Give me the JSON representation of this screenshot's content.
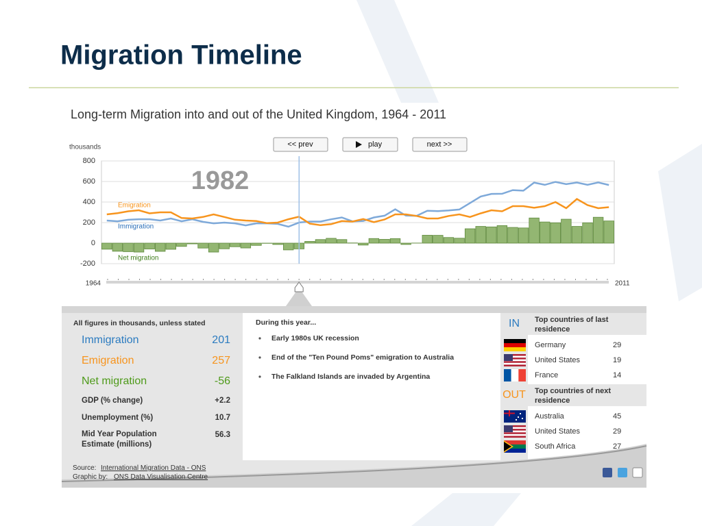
{
  "slide": {
    "title": "Migration Timeline"
  },
  "controls": {
    "prev": "<< prev",
    "play": "play",
    "next": "next >>"
  },
  "chart_data": {
    "type": "line",
    "title": "Long-term Migration into and out of the United Kingdom, 1964 - 2011",
    "y_label": "thousands",
    "x": [
      1964,
      1965,
      1966,
      1967,
      1968,
      1969,
      1970,
      1971,
      1972,
      1973,
      1974,
      1975,
      1976,
      1977,
      1978,
      1979,
      1980,
      1981,
      1982,
      1983,
      1984,
      1985,
      1986,
      1987,
      1988,
      1989,
      1990,
      1991,
      1992,
      1993,
      1994,
      1995,
      1996,
      1997,
      1998,
      1999,
      2000,
      2001,
      2002,
      2003,
      2004,
      2005,
      2006,
      2007,
      2008,
      2009,
      2010,
      2011
    ],
    "xlim": [
      1964,
      2011
    ],
    "ylim": [
      -200,
      800
    ],
    "yticks": [
      -200,
      0,
      200,
      400,
      600,
      800
    ],
    "grid": true,
    "selected_year": 1982,
    "series": [
      {
        "name": "Immigration",
        "color": "#7ea9d9",
        "values": [
          220,
          213,
          227,
          233,
          233,
          220,
          240,
          213,
          233,
          207,
          193,
          200,
          193,
          173,
          193,
          193,
          187,
          160,
          201,
          210,
          210,
          232,
          250,
          212,
          216,
          250,
          267,
          329,
          268,
          266,
          315,
          312,
          318,
          327,
          391,
          454,
          479,
          481,
          516,
          511,
          589,
          567,
          596,
          574,
          590,
          567,
          591,
          566
        ]
      },
      {
        "name": "Emigration",
        "color": "#f7941d",
        "values": [
          280,
          292,
          310,
          320,
          290,
          300,
          300,
          245,
          240,
          255,
          280,
          255,
          228,
          220,
          215,
          195,
          200,
          233,
          257,
          190,
          175,
          185,
          215,
          210,
          235,
          205,
          230,
          280,
          280,
          265,
          240,
          240,
          265,
          280,
          255,
          290,
          320,
          310,
          360,
          360,
          345,
          360,
          400,
          340,
          430,
          370,
          340,
          350
        ]
      },
      {
        "name": "Net migration",
        "type": "bar",
        "color": "#93b672",
        "values": [
          -59,
          -79,
          -83,
          -87,
          -57,
          -80,
          -60,
          -32,
          -7,
          -48,
          -87,
          -55,
          -35,
          -47,
          -22,
          -2,
          -13,
          -66,
          -56,
          17,
          35,
          47,
          35,
          2,
          -19,
          45,
          37,
          44,
          -13,
          1,
          77,
          76,
          55,
          48,
          140,
          163,
          158,
          171,
          153,
          148,
          245,
          206,
          198,
          233,
          163,
          198,
          252,
          216
        ]
      }
    ]
  },
  "panel": {
    "note": "All figures in thousands, unless stated",
    "stats": [
      {
        "label": "Immigration",
        "value": 201
      },
      {
        "label": "Emigration",
        "value": 257
      },
      {
        "label": "Net migration",
        "value": -56
      },
      {
        "label": "GDP (% change)",
        "value": "+2.2"
      },
      {
        "label": "Unemployment (%)",
        "value": 10.7
      },
      {
        "label": "Mid Year Population Estimate (millions)",
        "value": 56.3
      }
    ],
    "events_title": "During this year...",
    "events": [
      "Early 1980s UK recession",
      "End of the \"Ten Pound Poms\" emigration to Australia",
      "The Falkland Islands are invaded by Argentina"
    ],
    "in": {
      "tag": "IN",
      "title": "Top countries of last residence",
      "countries": [
        {
          "name": "Germany",
          "value": 29
        },
        {
          "name": "United States",
          "value": 19
        },
        {
          "name": "France",
          "value": 14
        }
      ]
    },
    "out": {
      "tag": "OUT",
      "title": "Top countries of next residence",
      "countries": [
        {
          "name": "Australia",
          "value": 45
        },
        {
          "name": "United States",
          "value": 29
        },
        {
          "name": "South Africa",
          "value": 27
        }
      ]
    }
  },
  "footer": {
    "source_label": "Source:",
    "source_link": "International Migration Data - ONS",
    "graphic_label": "Graphic by:",
    "graphic_link": "ONS Data Visualisation Centre"
  }
}
